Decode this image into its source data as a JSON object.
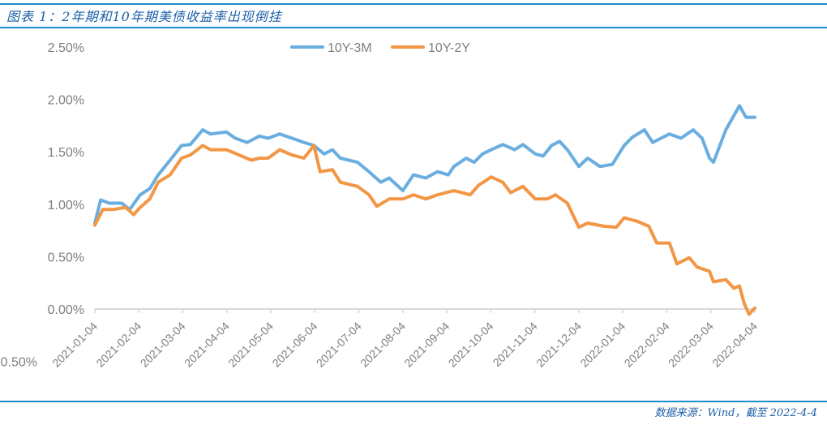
{
  "header": {
    "title": "图表 1：2年期和10年期美债收益率出现倒挂"
  },
  "footer": {
    "source": "数据来源：Wind，截至 2022-4-4"
  },
  "chart_data": {
    "type": "line",
    "title": "图表 1：2年期和10年期美债收益率出现倒挂",
    "xlabel": "",
    "ylabel": "",
    "x_unit": "months since 2021-01-04",
    "x_tick_labels": [
      "2021-01-04",
      "2021-02-04",
      "2021-03-04",
      "2021-04-04",
      "2021-05-04",
      "2021-06-04",
      "2021-07-04",
      "2021-08-04",
      "2021-09-04",
      "2021-10-04",
      "2021-11-04",
      "2021-12-04",
      "2022-01-04",
      "2022-02-04",
      "2022-03-04",
      "2022-04-04"
    ],
    "y_ticks": [
      2.5,
      2.0,
      1.5,
      1.0,
      0.5,
      0.0,
      -0.5
    ],
    "y_tick_labels": [
      "2.50%",
      "2.00%",
      "1.50%",
      "1.00%",
      "0.50%",
      "0.00%",
      "-0.50%"
    ],
    "ylim": [
      -0.5,
      2.5
    ],
    "xlim": [
      0,
      15
    ],
    "grid": false,
    "legend_position": "top-center",
    "series": [
      {
        "name": "10Y-3M",
        "color": "#6aaee0",
        "points": [
          [
            0,
            0.82
          ],
          [
            0.13,
            1.04
          ],
          [
            0.33,
            1.01
          ],
          [
            0.61,
            1.01
          ],
          [
            0.79,
            0.95
          ],
          [
            1.03,
            1.09
          ],
          [
            1.25,
            1.15
          ],
          [
            1.44,
            1.28
          ],
          [
            1.71,
            1.42
          ],
          [
            1.97,
            1.56
          ],
          [
            2.17,
            1.57
          ],
          [
            2.45,
            1.71
          ],
          [
            2.63,
            1.67
          ],
          [
            2.99,
            1.69
          ],
          [
            3.19,
            1.63
          ],
          [
            3.46,
            1.59
          ],
          [
            3.74,
            1.65
          ],
          [
            3.94,
            1.63
          ],
          [
            4.2,
            1.67
          ],
          [
            4.48,
            1.63
          ],
          [
            4.75,
            1.59
          ],
          [
            4.98,
            1.56
          ],
          [
            5.21,
            1.48
          ],
          [
            5.4,
            1.52
          ],
          [
            5.58,
            1.44
          ],
          [
            5.97,
            1.4
          ],
          [
            6.23,
            1.31
          ],
          [
            6.5,
            1.21
          ],
          [
            6.69,
            1.25
          ],
          [
            7.0,
            1.13
          ],
          [
            7.24,
            1.28
          ],
          [
            7.52,
            1.25
          ],
          [
            7.79,
            1.31
          ],
          [
            8.03,
            1.28
          ],
          [
            8.16,
            1.36
          ],
          [
            8.44,
            1.44
          ],
          [
            8.62,
            1.4
          ],
          [
            8.81,
            1.48
          ],
          [
            9.01,
            1.52
          ],
          [
            9.27,
            1.57
          ],
          [
            9.54,
            1.52
          ],
          [
            9.73,
            1.57
          ],
          [
            10.01,
            1.48
          ],
          [
            10.19,
            1.46
          ],
          [
            10.38,
            1.56
          ],
          [
            10.56,
            1.6
          ],
          [
            10.74,
            1.52
          ],
          [
            11.0,
            1.36
          ],
          [
            11.2,
            1.44
          ],
          [
            11.48,
            1.36
          ],
          [
            11.76,
            1.38
          ],
          [
            12.03,
            1.56
          ],
          [
            12.22,
            1.64
          ],
          [
            12.49,
            1.71
          ],
          [
            12.68,
            1.59
          ],
          [
            13.06,
            1.67
          ],
          [
            13.32,
            1.63
          ],
          [
            13.6,
            1.71
          ],
          [
            13.8,
            1.63
          ],
          [
            13.97,
            1.44
          ],
          [
            14.06,
            1.4
          ],
          [
            14.34,
            1.71
          ],
          [
            14.65,
            1.94
          ],
          [
            14.8,
            1.83
          ],
          [
            15.0,
            1.83
          ]
        ]
      },
      {
        "name": "10Y-2Y",
        "color": "#f39645",
        "points": [
          [
            0,
            0.8
          ],
          [
            0.18,
            0.95
          ],
          [
            0.42,
            0.95
          ],
          [
            0.7,
            0.97
          ],
          [
            0.88,
            0.9
          ],
          [
            1.03,
            0.97
          ],
          [
            1.25,
            1.05
          ],
          [
            1.44,
            1.21
          ],
          [
            1.71,
            1.28
          ],
          [
            1.97,
            1.44
          ],
          [
            2.17,
            1.47
          ],
          [
            2.45,
            1.56
          ],
          [
            2.63,
            1.52
          ],
          [
            2.99,
            1.52
          ],
          [
            3.28,
            1.47
          ],
          [
            3.56,
            1.42
          ],
          [
            3.74,
            1.44
          ],
          [
            3.94,
            1.44
          ],
          [
            4.2,
            1.52
          ],
          [
            4.48,
            1.47
          ],
          [
            4.75,
            1.44
          ],
          [
            4.98,
            1.56
          ],
          [
            5.12,
            1.31
          ],
          [
            5.4,
            1.33
          ],
          [
            5.58,
            1.21
          ],
          [
            5.97,
            1.17
          ],
          [
            6.23,
            1.09
          ],
          [
            6.41,
            0.98
          ],
          [
            6.69,
            1.05
          ],
          [
            7.0,
            1.05
          ],
          [
            7.24,
            1.09
          ],
          [
            7.52,
            1.05
          ],
          [
            7.79,
            1.09
          ],
          [
            8.16,
            1.13
          ],
          [
            8.53,
            1.09
          ],
          [
            8.72,
            1.18
          ],
          [
            9.01,
            1.26
          ],
          [
            9.27,
            1.21
          ],
          [
            9.45,
            1.11
          ],
          [
            9.73,
            1.17
          ],
          [
            10.01,
            1.05
          ],
          [
            10.28,
            1.05
          ],
          [
            10.47,
            1.09
          ],
          [
            10.74,
            1.01
          ],
          [
            11.0,
            0.78
          ],
          [
            11.2,
            0.82
          ],
          [
            11.57,
            0.79
          ],
          [
            11.85,
            0.78
          ],
          [
            12.03,
            0.87
          ],
          [
            12.31,
            0.84
          ],
          [
            12.59,
            0.79
          ],
          [
            12.77,
            0.63
          ],
          [
            13.06,
            0.63
          ],
          [
            13.23,
            0.43
          ],
          [
            13.51,
            0.49
          ],
          [
            13.69,
            0.4
          ],
          [
            13.97,
            0.36
          ],
          [
            14.06,
            0.26
          ],
          [
            14.34,
            0.28
          ],
          [
            14.52,
            0.2
          ],
          [
            14.65,
            0.22
          ],
          [
            14.76,
            0.05
          ],
          [
            14.87,
            -0.05
          ],
          [
            15.0,
            0.01
          ]
        ]
      }
    ]
  }
}
